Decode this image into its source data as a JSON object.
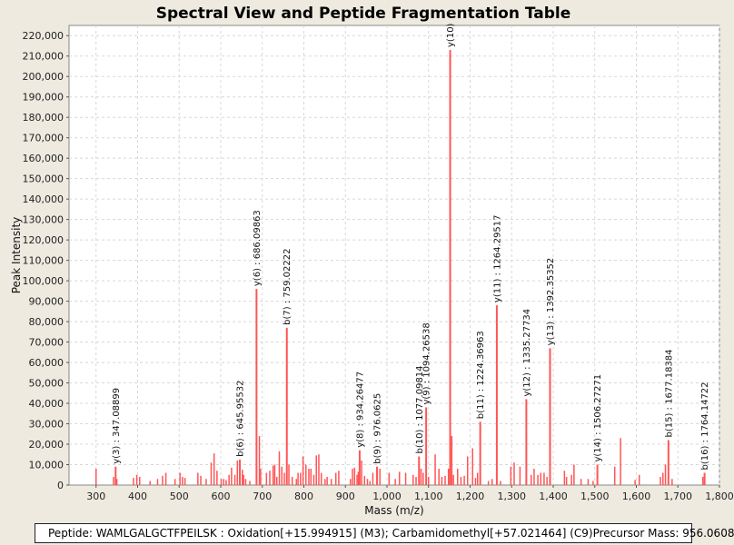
{
  "chart_data": {
    "type": "bar",
    "title": "Spectral View and Peptide Fragmentation Table",
    "xlabel": "Mass (m/z)",
    "ylabel": "Peak Intensity",
    "xlim": [
      235,
      1800
    ],
    "ylim": [
      0,
      225000
    ],
    "xticks": [
      300,
      400,
      500,
      600,
      700,
      800,
      900,
      1000,
      1100,
      1200,
      1300,
      1400,
      1500,
      1600,
      1700,
      1800
    ],
    "xtick_labels": [
      "300",
      "400",
      "500",
      "600",
      "700",
      "800",
      "900",
      "1,000",
      "1,100",
      "1,200",
      "1,300",
      "1,400",
      "1,500",
      "1,600",
      "1,700",
      "1,800"
    ],
    "yticks": [
      0,
      10000,
      20000,
      30000,
      40000,
      50000,
      60000,
      70000,
      80000,
      90000,
      100000,
      110000,
      120000,
      130000,
      140000,
      150000,
      160000,
      170000,
      180000,
      190000,
      200000,
      210000,
      220000
    ],
    "ytick_labels": [
      "0",
      "10,000",
      "20,000",
      "30,000",
      "40,000",
      "50,000",
      "60,000",
      "70,000",
      "80,000",
      "90,000",
      "100,000",
      "110,000",
      "120,000",
      "130,000",
      "140,000",
      "150,000",
      "160,000",
      "170,000",
      "180,000",
      "190,000",
      "200,000",
      "210,000",
      "220,000"
    ],
    "grid": true,
    "bar_color": "#ff5555",
    "annotated_peaks": [
      {
        "mz": 347.08899,
        "intensity": 9000,
        "label": "y(3) : 347.08899"
      },
      {
        "mz": 645.95532,
        "intensity": 12500,
        "label": "b(6) : 645.95532"
      },
      {
        "mz": 686.09863,
        "intensity": 96000,
        "label": "y(6) : 686.09863"
      },
      {
        "mz": 759.02222,
        "intensity": 77000,
        "label": "b(7) : 759.02222"
      },
      {
        "mz": 934.26477,
        "intensity": 17000,
        "label": "y(8) : 934.26477"
      },
      {
        "mz": 976.0625,
        "intensity": 9000,
        "label": "b(9) : 976.0625"
      },
      {
        "mz": 1077.09814,
        "intensity": 14000,
        "label": "b(10) : 1077.09814"
      },
      {
        "mz": 1094.26538,
        "intensity": 38000,
        "label": "y(9) : 1094.26538"
      },
      {
        "mz": 1152.0,
        "intensity": 213000,
        "label": "y(10)"
      },
      {
        "mz": 1224.36963,
        "intensity": 31000,
        "label": "b(11) : 1224.36963"
      },
      {
        "mz": 1264.29517,
        "intensity": 88000,
        "label": "y(11) : 1264.29517"
      },
      {
        "mz": 1335.27734,
        "intensity": 42000,
        "label": "y(12) : 1335.27734"
      },
      {
        "mz": 1392.35352,
        "intensity": 67000,
        "label": "y(13) : 1392.35352"
      },
      {
        "mz": 1506.27271,
        "intensity": 10000,
        "label": "y(14) : 1506.27271"
      },
      {
        "mz": 1677.18384,
        "intensity": 22000,
        "label": "b(15) : 1677.18384"
      },
      {
        "mz": 1764.14722,
        "intensity": 6000,
        "label": "b(16) : 1764.14722"
      }
    ],
    "other_peaks": [
      [
        300,
        8000
      ],
      [
        342,
        4000
      ],
      [
        350,
        3000
      ],
      [
        390,
        3500
      ],
      [
        398,
        5000
      ],
      [
        405,
        4000
      ],
      [
        430,
        2000
      ],
      [
        448,
        3000
      ],
      [
        460,
        4500
      ],
      [
        468,
        6000
      ],
      [
        490,
        3000
      ],
      [
        502,
        6000
      ],
      [
        508,
        4000
      ],
      [
        514,
        3500
      ],
      [
        545,
        6000
      ],
      [
        552,
        4500
      ],
      [
        565,
        3000
      ],
      [
        577,
        11000
      ],
      [
        584,
        15500
      ],
      [
        591,
        7000
      ],
      [
        601,
        3000
      ],
      [
        607,
        3000
      ],
      [
        613,
        2500
      ],
      [
        620,
        5000
      ],
      [
        626,
        8500
      ],
      [
        634,
        5000
      ],
      [
        640,
        12000
      ],
      [
        652,
        7500
      ],
      [
        655,
        5000
      ],
      [
        660,
        3000
      ],
      [
        670,
        2000
      ],
      [
        693,
        24000
      ],
      [
        696,
        8000
      ],
      [
        710,
        6000
      ],
      [
        718,
        7000
      ],
      [
        726,
        9500
      ],
      [
        730,
        10000
      ],
      [
        735,
        4000
      ],
      [
        741,
        16500
      ],
      [
        747,
        9000
      ],
      [
        753,
        6000
      ],
      [
        764,
        10000
      ],
      [
        772,
        4000
      ],
      [
        782,
        3000
      ],
      [
        786,
        6000
      ],
      [
        792,
        6000
      ],
      [
        798,
        14000
      ],
      [
        805,
        10000
      ],
      [
        812,
        8000
      ],
      [
        817,
        8000
      ],
      [
        824,
        5000
      ],
      [
        830,
        14500
      ],
      [
        836,
        15000
      ],
      [
        842,
        6000
      ],
      [
        851,
        3000
      ],
      [
        856,
        4000
      ],
      [
        866,
        3000
      ],
      [
        877,
        6000
      ],
      [
        884,
        7000
      ],
      [
        912,
        3000
      ],
      [
        917,
        8000
      ],
      [
        922,
        8500
      ],
      [
        928,
        5000
      ],
      [
        931,
        6500
      ],
      [
        939,
        12000
      ],
      [
        946,
        4500
      ],
      [
        953,
        3000
      ],
      [
        959,
        2000
      ],
      [
        966,
        6000
      ],
      [
        983,
        8000
      ],
      [
        1005,
        6000
      ],
      [
        1020,
        3000
      ],
      [
        1030,
        6500
      ],
      [
        1045,
        6000
      ],
      [
        1063,
        5000
      ],
      [
        1070,
        4000
      ],
      [
        1082,
        8000
      ],
      [
        1087,
        6000
      ],
      [
        1100,
        4000
      ],
      [
        1116,
        15000
      ],
      [
        1125,
        8000
      ],
      [
        1132,
        4000
      ],
      [
        1140,
        4500
      ],
      [
        1148,
        8000
      ],
      [
        1156,
        24000
      ],
      [
        1160,
        5000
      ],
      [
        1170,
        8000
      ],
      [
        1178,
        4000
      ],
      [
        1186,
        4500
      ],
      [
        1194,
        14000
      ],
      [
        1206,
        18000
      ],
      [
        1213,
        3500
      ],
      [
        1218,
        6000
      ],
      [
        1244,
        2000
      ],
      [
        1253,
        3000
      ],
      [
        1273,
        2000
      ],
      [
        1298,
        9000
      ],
      [
        1306,
        11000
      ],
      [
        1320,
        9000
      ],
      [
        1347,
        5000
      ],
      [
        1354,
        8000
      ],
      [
        1363,
        5000
      ],
      [
        1370,
        6000
      ],
      [
        1378,
        6000
      ],
      [
        1385,
        4000
      ],
      [
        1427,
        7000
      ],
      [
        1432,
        4000
      ],
      [
        1444,
        5000
      ],
      [
        1450,
        10000
      ],
      [
        1467,
        3000
      ],
      [
        1484,
        3000
      ],
      [
        1496,
        2000
      ],
      [
        1548,
        9000
      ],
      [
        1562,
        23000
      ],
      [
        1597,
        2500
      ],
      [
        1607,
        5000
      ],
      [
        1658,
        4000
      ],
      [
        1664,
        6000
      ],
      [
        1670,
        10000
      ],
      [
        1686,
        3000
      ],
      [
        1760,
        4000
      ]
    ]
  },
  "footer": {
    "peptide": "Peptide: WAMLGALGCTFPEILSK : Oxidation[+15.994915] (M3); Carbamidomethyl[+57.021464] (C9)",
    "precursor": "Precursor Mass: 956.0608"
  }
}
